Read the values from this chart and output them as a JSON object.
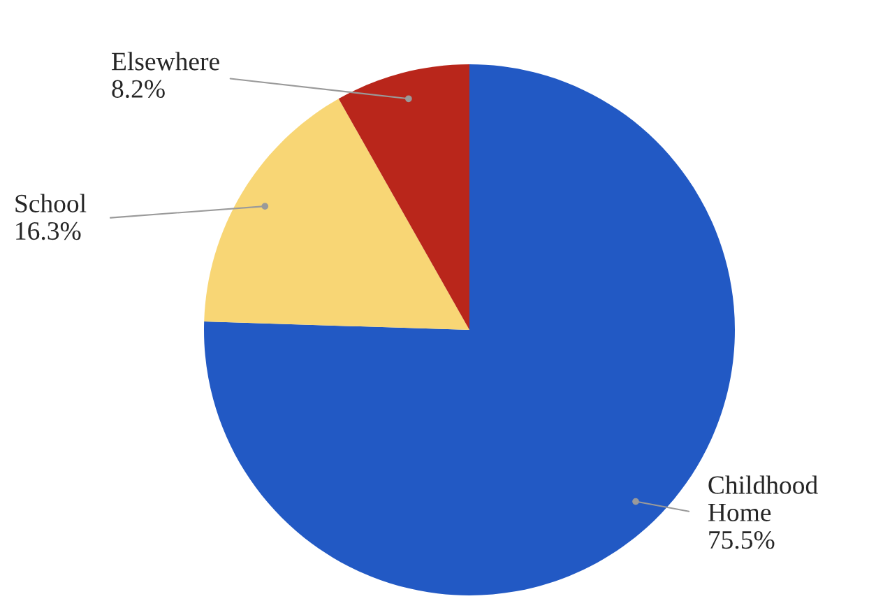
{
  "chart_data": {
    "type": "pie",
    "categories": [
      "Childhood Home",
      "School",
      "Elsewhere"
    ],
    "values": [
      75.5,
      16.3,
      8.2
    ],
    "colors": [
      "#2259c4",
      "#f8d675",
      "#b9261b"
    ],
    "value_labels": [
      "75.5%",
      "16.3%",
      "8.2%"
    ]
  }
}
